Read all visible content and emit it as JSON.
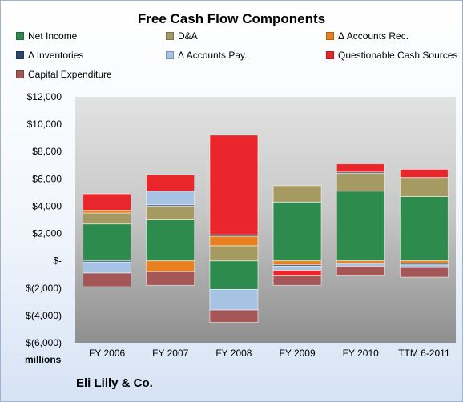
{
  "chart_data": {
    "type": "bar",
    "stacked": true,
    "title": "Free Cash Flow Components",
    "units_label": "millions",
    "footer": "Eli Lilly & Co.",
    "categories": [
      "FY 2006",
      "FY 2007",
      "FY 2008",
      "FY 2009",
      "FY 2010",
      "TTM 6-2011"
    ],
    "ylim": [
      -6000,
      12000
    ],
    "y_ticks": [
      12000,
      10000,
      8000,
      6000,
      4000,
      2000,
      0,
      -2000,
      -4000,
      -6000
    ],
    "y_tick_labels": [
      "$12,000",
      "$10,000",
      "$8,000",
      "$6,000",
      "$4,000",
      "$2,000",
      "$-",
      "$(2,000)",
      "$(4,000)",
      "$(6,000)"
    ],
    "grid": false,
    "legend_position": "top",
    "series": [
      {
        "name": "Net Income",
        "color": "#2e8b4e",
        "values": [
          2700,
          3000,
          -2100,
          4300,
          5100,
          4700
        ]
      },
      {
        "name": "D&A",
        "color": "#a69a63",
        "values": [
          800,
          1000,
          1100,
          1200,
          1300,
          1400
        ]
      },
      {
        "name": "Δ Accounts Rec.",
        "color": "#e9801f",
        "values": [
          200,
          -800,
          700,
          -300,
          -200,
          -200
        ]
      },
      {
        "name": "Δ Inventories",
        "color": "#2a4a6d",
        "values": [
          -100,
          100,
          100,
          -100,
          100,
          -100
        ]
      },
      {
        "name": "Δ Accounts Pay.",
        "color": "#a7c3e4",
        "values": [
          -800,
          1000,
          -1500,
          -300,
          -200,
          -200
        ]
      },
      {
        "name": "Questionable Cash Sources",
        "color": "#e8262b",
        "values": [
          1200,
          1200,
          7300,
          -400,
          600,
          600
        ]
      },
      {
        "name": "Capital Expenditure",
        "color": "#a45756",
        "values": [
          -1000,
          -1000,
          -900,
          -700,
          -700,
          -700
        ]
      }
    ]
  }
}
